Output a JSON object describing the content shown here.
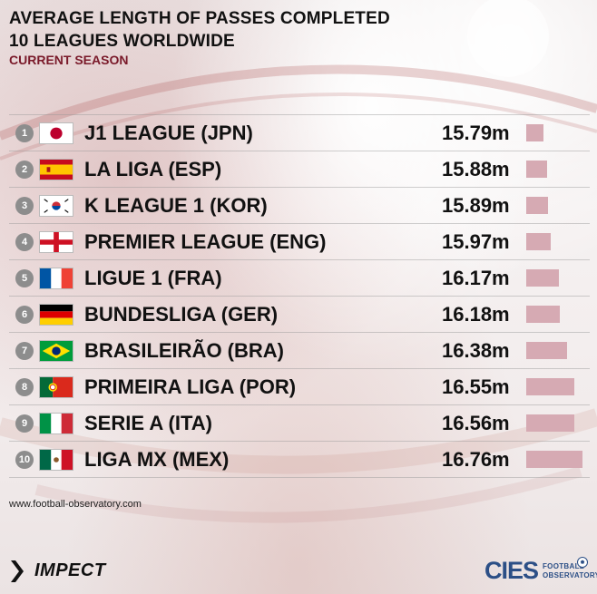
{
  "header": {
    "title_line1": "AVERAGE LENGTH OF PASSES COMPLETED",
    "title_line2": "10 LEAGUES WORLDWIDE",
    "subtitle": "CURRENT SEASON"
  },
  "chart_data": {
    "type": "bar",
    "orientation": "horizontal",
    "title": "AVERAGE LENGTH OF PASSES COMPLETED",
    "unit": "m",
    "categories": [
      "J1 LEAGUE (JPN)",
      "LA LIGA (ESP)",
      "K LEAGUE 1 (KOR)",
      "PREMIER LEAGUE (ENG)",
      "LIGUE 1 (FRA)",
      "BUNDESLIGA (GER)",
      "BRASILEIRÃO (BRA)",
      "PRIMEIRA LIGA (POR)",
      "SERIE A (ITA)",
      "LIGA MX (MEX)"
    ],
    "values": [
      15.79,
      15.88,
      15.89,
      15.97,
      16.17,
      16.18,
      16.38,
      16.55,
      16.56,
      16.76
    ],
    "ranks": [
      "1",
      "2",
      "3",
      "4",
      "5",
      "6",
      "7",
      "8",
      "9",
      "10"
    ],
    "value_labels": [
      "15.79m",
      "15.88m",
      "15.89m",
      "15.97m",
      "16.17m",
      "16.18m",
      "16.38m",
      "16.55m",
      "16.56m",
      "16.76m"
    ],
    "flags": [
      "japan-flag-icon",
      "spain-flag-icon",
      "south-korea-flag-icon",
      "england-flag-icon",
      "france-flag-icon",
      "germany-flag-icon",
      "brazil-flag-icon",
      "portugal-flag-icon",
      "italy-flag-icon",
      "mexico-flag-icon"
    ],
    "bar_color": "#d6aab3"
  },
  "footer": {
    "url": "www.football-observatory.com",
    "impect_logo": "IMPECT",
    "cies_logo": "CIES",
    "cies_sub1": "FOOTBALL",
    "cies_sub2": "OBSERVATORY"
  }
}
